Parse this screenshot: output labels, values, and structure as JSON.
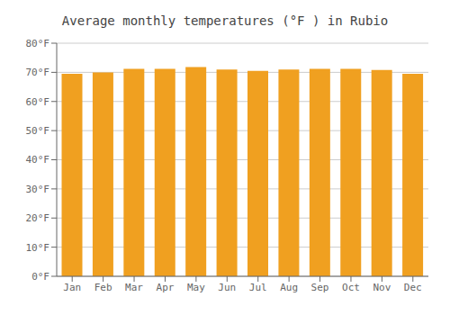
{
  "chart_data": {
    "type": "bar",
    "title": "Average monthly temperatures (°F ) in Rubio",
    "categories": [
      "Jan",
      "Feb",
      "Mar",
      "Apr",
      "May",
      "Jun",
      "Jul",
      "Aug",
      "Sep",
      "Oct",
      "Nov",
      "Dec"
    ],
    "values": [
      69.5,
      70.0,
      71.2,
      71.2,
      71.8,
      71.0,
      70.5,
      71.0,
      71.2,
      71.2,
      70.8,
      69.5
    ],
    "color": "#F0A020",
    "ylim": [
      0,
      80
    ],
    "yticks": [
      {
        "value": 0,
        "label": "0°F"
      },
      {
        "value": 10,
        "label": "10°F"
      },
      {
        "value": 20,
        "label": "20°F"
      },
      {
        "value": 30,
        "label": "30°F"
      },
      {
        "value": 40,
        "label": "40°F"
      },
      {
        "value": 50,
        "label": "50°F"
      },
      {
        "value": 60,
        "label": "60°F"
      },
      {
        "value": 70,
        "label": "70°F"
      },
      {
        "value": 80,
        "label": "80°F"
      }
    ],
    "grid": true
  }
}
